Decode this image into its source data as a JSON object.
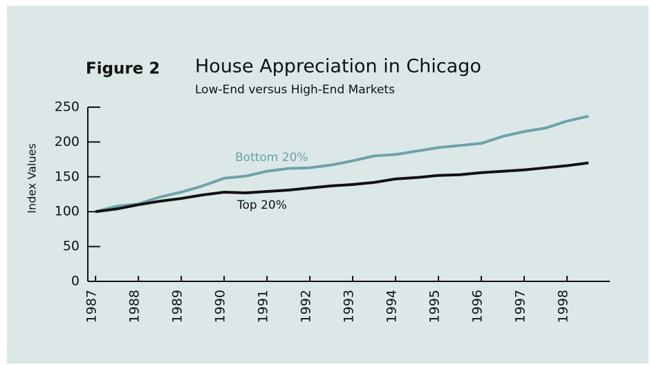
{
  "chart_data": {
    "type": "line",
    "label": "Figure 2",
    "title": "House Appreciation in Chicago",
    "subtitle": "Low-End versus High-End Markets",
    "y_label": "Index Values",
    "x": [
      1987,
      1987.5,
      1988,
      1988.5,
      1989,
      1989.5,
      1990,
      1990.5,
      1991,
      1991.5,
      1992,
      1992.5,
      1993,
      1993.5,
      1994,
      1994.5,
      1995,
      1995.5,
      1996,
      1996.5,
      1997,
      1997.5,
      1998,
      1998.5
    ],
    "series": [
      {
        "name": "Bottom 20%",
        "color": "#6ea3a6",
        "values": [
          100,
          108,
          111,
          121,
          128,
          137,
          148,
          151,
          158,
          162,
          163,
          167,
          173,
          180,
          182,
          187,
          192,
          195,
          198,
          208,
          215,
          220,
          230,
          237
        ]
      },
      {
        "name": "Top 20%",
        "color": "#111111",
        "values": [
          100,
          104,
          110,
          115,
          119,
          124,
          128,
          127,
          129,
          131,
          134,
          137,
          139,
          142,
          147,
          149,
          152,
          153,
          156,
          158,
          160,
          163,
          166,
          170
        ]
      }
    ],
    "xlim": [
      1986.82,
      1999.0
    ],
    "xticks": [
      1987,
      1988,
      1989,
      1990,
      1991,
      1992,
      1993,
      1994,
      1995,
      1996,
      1997,
      1998
    ],
    "ylim": [
      0,
      250
    ],
    "yticks": [
      0,
      50,
      100,
      150,
      200,
      250
    ]
  }
}
